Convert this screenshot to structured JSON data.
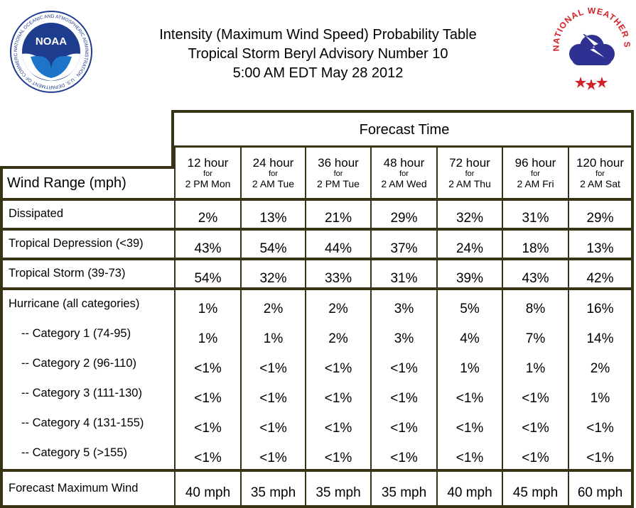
{
  "title": {
    "line1": "Intensity (Maximum Wind Speed) Probability Table",
    "line2": "Tropical Storm Beryl Advisory Number 10",
    "line3": "5:00 AM EDT May 28 2012"
  },
  "logos": {
    "noaa": {
      "text": "NOAA",
      "ring_text": "NATIONAL OCEANIC AND ATMOSPHERIC ADMINISTRATION · U.S. DEPARTMENT OF COMMERCE",
      "icon": "noaa-seal-icon"
    },
    "nws": {
      "ring_text": "NATIONAL WEATHER SERVICE",
      "icon": "nws-seal-icon"
    }
  },
  "header": {
    "forecast_time": "Forecast Time",
    "wind_range": "Wind Range (mph)"
  },
  "columns": [
    {
      "hours": "12 hour",
      "for": "for",
      "when": "2 PM Mon"
    },
    {
      "hours": "24 hour",
      "for": "for",
      "when": "2 AM Tue"
    },
    {
      "hours": "36 hour",
      "for": "for",
      "when": "2 PM Tue"
    },
    {
      "hours": "48 hour",
      "for": "for",
      "when": "2 AM Wed"
    },
    {
      "hours": "72 hour",
      "for": "for",
      "when": "2 AM Thu"
    },
    {
      "hours": "96 hour",
      "for": "for",
      "when": "2 AM Fri"
    },
    {
      "hours": "120 hour",
      "for": "for",
      "when": "2 AM Sat"
    }
  ],
  "rows": [
    {
      "label": "Dissipated",
      "values": [
        "2%",
        "13%",
        "21%",
        "29%",
        "32%",
        "31%",
        "29%"
      ]
    },
    {
      "label": "Tropical Depression (<39)",
      "values": [
        "43%",
        "54%",
        "44%",
        "37%",
        "24%",
        "18%",
        "13%"
      ]
    },
    {
      "label": "Tropical Storm (39-73)",
      "values": [
        "54%",
        "32%",
        "33%",
        "31%",
        "39%",
        "43%",
        "42%"
      ]
    },
    {
      "label": "Hurricane (all categories)",
      "values": [
        "1%",
        "2%",
        "2%",
        "3%",
        "5%",
        "8%",
        "16%"
      ]
    },
    {
      "label": "-- Category 1 (74-95)",
      "values": [
        "1%",
        "1%",
        "2%",
        "3%",
        "4%",
        "7%",
        "14%"
      ]
    },
    {
      "label": "-- Category 2 (96-110)",
      "values": [
        "<1%",
        "<1%",
        "<1%",
        "<1%",
        "1%",
        "1%",
        "2%"
      ]
    },
    {
      "label": "-- Category 3 (111-130)",
      "values": [
        "<1%",
        "<1%",
        "<1%",
        "<1%",
        "<1%",
        "<1%",
        "1%"
      ]
    },
    {
      "label": "-- Category 4 (131-155)",
      "values": [
        "<1%",
        "<1%",
        "<1%",
        "<1%",
        "<1%",
        "<1%",
        "<1%"
      ]
    },
    {
      "label": "-- Category 5 (>155)",
      "values": [
        "<1%",
        "<1%",
        "<1%",
        "<1%",
        "<1%",
        "<1%",
        "<1%"
      ]
    },
    {
      "label": "Forecast Maximum Wind",
      "values": [
        "40 mph",
        "35 mph",
        "35 mph",
        "35 mph",
        "40 mph",
        "45 mph",
        "60 mph"
      ]
    }
  ],
  "colors": {
    "grid": "#373315",
    "noaa_blue": "#1e3d8f",
    "nws_red": "#d2232a",
    "nws_blue": "#2e3192"
  }
}
